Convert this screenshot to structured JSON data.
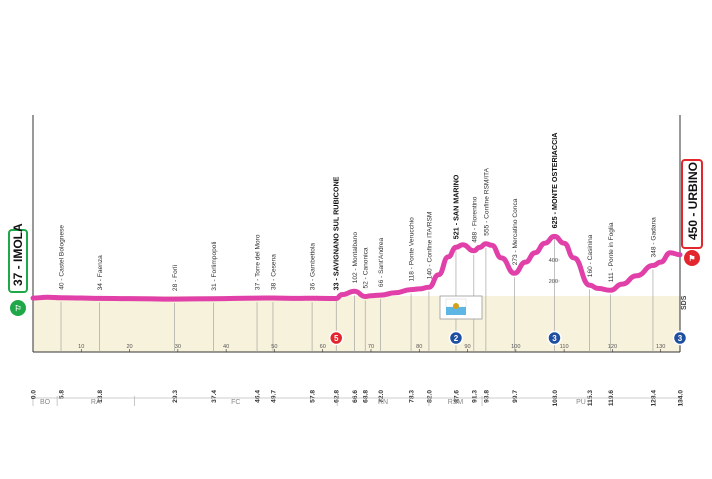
{
  "stage": {
    "start": {
      "alt": "37",
      "name": "IMOLA",
      "km": "0.0"
    },
    "finish": {
      "alt": "450",
      "name": "URBINO",
      "km": "134.0"
    },
    "colors": {
      "profile": "#e040a8",
      "start": "#1fa84a",
      "finish": "#e3262d",
      "climb": "#1f4fa0"
    }
  },
  "waypoints": [
    {
      "km": 5.8,
      "label": "40 - Castel Bolognese",
      "km_label": "5.8",
      "major": false
    },
    {
      "km": 13.8,
      "label": "34 - Faenza",
      "km_label": "13.8",
      "major": false
    },
    {
      "km": 29.3,
      "label": "28 - Forlì",
      "km_label": "29.3",
      "major": false
    },
    {
      "km": 37.4,
      "label": "31 - Forlimpopoli",
      "km_label": "37.4",
      "major": false
    },
    {
      "km": 46.4,
      "label": "37 - Torre del Moro",
      "km_label": "46.4",
      "major": false
    },
    {
      "km": 49.7,
      "label": "38 - Cesena",
      "km_label": "49.7",
      "major": false
    },
    {
      "km": 57.8,
      "label": "36 - Gambettola",
      "km_label": "57.8",
      "major": false
    },
    {
      "km": 62.8,
      "label": "33 - SAVIGNANO SUL RUBICONE",
      "km_label": "62.8",
      "major": true
    },
    {
      "km": 66.6,
      "label": "102 - Montalbano",
      "km_label": "66.6",
      "major": false
    },
    {
      "km": 68.8,
      "label": "52 - Canonica",
      "km_label": "68.8",
      "major": false
    },
    {
      "km": 72.0,
      "label": "66 - Sant'Andrea",
      "km_label": "72.0",
      "major": false
    },
    {
      "km": 78.3,
      "label": "118 - Ponte Verucchio",
      "km_label": "78.3",
      "major": false
    },
    {
      "km": 82.0,
      "label": "140 - Confine ITA/RSM",
      "km_label": "82.0",
      "major": false
    },
    {
      "km": 87.6,
      "label": "521 - SAN MARINO",
      "km_label": "87.6",
      "major": true
    },
    {
      "km": 91.3,
      "label": "488 - Fiorentino",
      "km_label": "91.3",
      "major": false
    },
    {
      "km": 93.8,
      "label": "555 - Confine RSM/ITA",
      "km_label": "93.8",
      "major": false
    },
    {
      "km": 99.7,
      "label": "273 - Mercatino Conca",
      "km_label": "99.7",
      "major": false
    },
    {
      "km": 108.0,
      "label": "625 - MONTE OSTERIACCIA",
      "km_label": "108.0",
      "major": true
    },
    {
      "km": 115.3,
      "label": "160 - Casinina",
      "km_label": "115.3",
      "major": false
    },
    {
      "km": 119.6,
      "label": "111 - Ponte in Foglia",
      "km_label": "119.6",
      "major": false
    },
    {
      "km": 128.4,
      "label": "348 - Gadana",
      "km_label": "128.4",
      "major": false
    }
  ],
  "km_ticks": [
    "10",
    "20",
    "30",
    "40",
    "50",
    "60",
    "70",
    "80",
    "90",
    "100",
    "110",
    "120",
    "130"
  ],
  "alt_ticks": [
    "200",
    "400"
  ],
  "regions": [
    "BO",
    "RA",
    "FC",
    "RN",
    "RSM",
    "PU"
  ],
  "markers": [
    {
      "km": 62.8,
      "label": "5",
      "kind": "sprint"
    },
    {
      "km": 87.6,
      "label": "2",
      "kind": "climb"
    },
    {
      "km": 108.0,
      "label": "3",
      "kind": "climb"
    },
    {
      "km": 134.0,
      "label": "3",
      "kind": "climb"
    }
  ],
  "finish_tag": "SDS",
  "profile": {
    "km": [
      0,
      3,
      5.8,
      10,
      13.8,
      20,
      29.3,
      37.4,
      46.4,
      49.7,
      55,
      57.8,
      60,
      62.8,
      64,
      66.6,
      68.8,
      70,
      72,
      75,
      78.3,
      80,
      82,
      84,
      86,
      87.6,
      89,
      91.3,
      92.5,
      93.8,
      95,
      97,
      99.7,
      102,
      104,
      106,
      108,
      110,
      112,
      115.3,
      117,
      119.6,
      122,
      125,
      128.4,
      130,
      132,
      134
    ],
    "alt": [
      37,
      45,
      40,
      38,
      34,
      32,
      28,
      31,
      37,
      38,
      34,
      36,
      34,
      33,
      70,
      102,
      52,
      60,
      66,
      88,
      118,
      125,
      140,
      260,
      430,
      521,
      545,
      488,
      520,
      555,
      540,
      420,
      273,
      380,
      470,
      560,
      625,
      560,
      420,
      160,
      130,
      111,
      170,
      250,
      348,
      380,
      470,
      450
    ]
  }
}
